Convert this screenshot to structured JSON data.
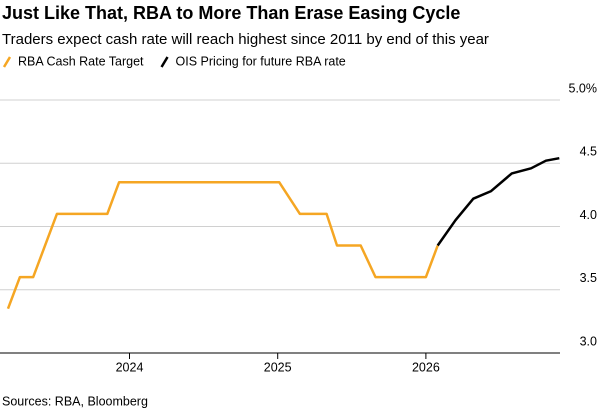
{
  "chart_data": {
    "type": "line",
    "title": "Just Like That, RBA to More Than Erase Easing Cycle",
    "subtitle": "Traders expect cash rate will reach highest since 2011 by end of this year",
    "source": "Sources: RBA, Bloomberg",
    "series": [
      {
        "name": "RBA Cash Rate Target",
        "color": "#f5a623",
        "x": [
          2023.18,
          2023.26,
          2023.35,
          2023.51,
          2023.85,
          2023.93,
          2025.01,
          2025.15,
          2025.33,
          2025.4,
          2025.56,
          2025.66,
          2026.0,
          2026.08
        ],
        "values": [
          3.35,
          3.6,
          3.6,
          4.1,
          4.1,
          4.35,
          4.35,
          4.1,
          4.1,
          3.85,
          3.85,
          3.6,
          3.6,
          3.85
        ]
      },
      {
        "name": "OIS Pricing for future RBA rate",
        "color": "#000000",
        "x": [
          2026.08,
          2026.2,
          2026.32,
          2026.44,
          2026.58,
          2026.71,
          2026.81,
          2026.9
        ],
        "values": [
          3.85,
          4.05,
          4.22,
          4.28,
          4.42,
          4.46,
          4.52,
          4.54
        ]
      }
    ],
    "xlim": [
      2023.18,
      2026.905
    ],
    "xticks": [
      2024,
      2025,
      2026
    ],
    "ylim": [
      3.0,
      5.0
    ],
    "yticks": [
      {
        "value": 3.0,
        "label": "3.0"
      },
      {
        "value": 3.5,
        "label": "3.5"
      },
      {
        "value": 4.0,
        "label": "4.0"
      },
      {
        "value": 4.5,
        "label": "4.5"
      },
      {
        "value": 5.0,
        "label": "5.0%"
      }
    ],
    "grid": true
  }
}
